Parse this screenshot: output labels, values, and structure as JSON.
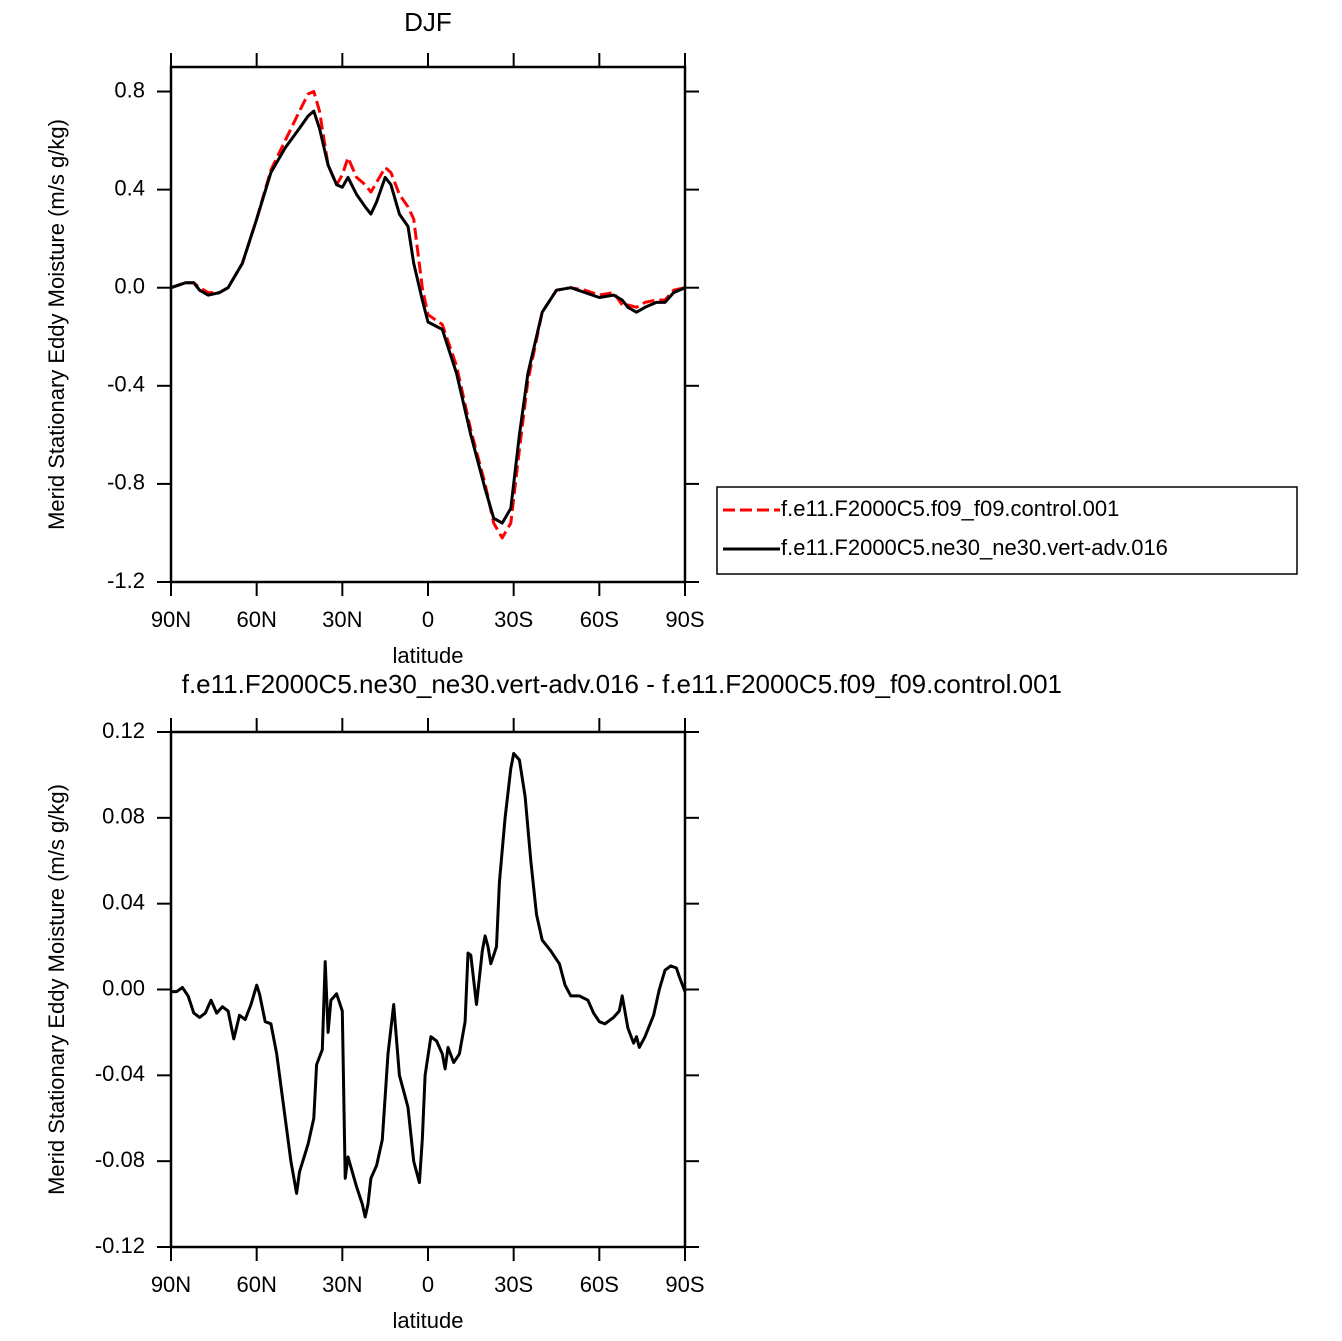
{
  "chart_data": [
    {
      "type": "line",
      "title": "DJF",
      "x_label": "latitude",
      "y_label": "Merid Stationary Eddy Moisture (m/s g/kg)",
      "x": [
        90,
        85,
        82,
        80,
        77,
        73,
        70,
        65,
        60,
        55,
        50,
        45,
        42,
        40,
        38,
        35,
        32,
        30,
        28,
        25,
        22,
        20,
        18,
        15,
        13,
        10,
        7,
        5,
        2,
        0,
        -5,
        -10,
        -15,
        -20,
        -23,
        -26,
        -29,
        -32,
        -35,
        -40,
        -45,
        -50,
        -55,
        -60,
        -65,
        -68,
        -70,
        -73,
        -76,
        -80,
        -83,
        -86,
        -90
      ],
      "series": [
        {
          "name": "f.e11.F2000C5.f09_f09.control.001",
          "color": "#ff0000",
          "style": "dashed",
          "values": [
            0.0,
            0.02,
            0.02,
            0.0,
            -0.02,
            -0.02,
            0.0,
            0.1,
            0.28,
            0.48,
            0.6,
            0.72,
            0.79,
            0.8,
            0.72,
            0.5,
            0.42,
            0.46,
            0.53,
            0.45,
            0.42,
            0.39,
            0.43,
            0.49,
            0.47,
            0.38,
            0.33,
            0.28,
            0.0,
            -0.11,
            -0.15,
            -0.32,
            -0.58,
            -0.8,
            -0.96,
            -1.02,
            -0.96,
            -0.66,
            -0.38,
            -0.1,
            -0.01,
            0.0,
            -0.01,
            -0.03,
            -0.02,
            -0.07,
            -0.07,
            -0.08,
            -0.06,
            -0.05,
            -0.05,
            -0.01,
            0.0
          ]
        },
        {
          "name": "f.e11.F2000C5.ne30_ne30.vert-adv.016",
          "color": "#000000",
          "style": "solid",
          "values": [
            0.0,
            0.02,
            0.02,
            -0.01,
            -0.03,
            -0.02,
            0.0,
            0.1,
            0.28,
            0.47,
            0.57,
            0.65,
            0.7,
            0.72,
            0.65,
            0.5,
            0.42,
            0.41,
            0.45,
            0.38,
            0.33,
            0.3,
            0.35,
            0.45,
            0.42,
            0.3,
            0.25,
            0.1,
            -0.05,
            -0.14,
            -0.17,
            -0.35,
            -0.6,
            -0.82,
            -0.94,
            -0.96,
            -0.9,
            -0.6,
            -0.35,
            -0.1,
            -0.01,
            0.0,
            -0.02,
            -0.04,
            -0.03,
            -0.05,
            -0.08,
            -0.1,
            -0.08,
            -0.06,
            -0.06,
            -0.02,
            0.0
          ]
        }
      ],
      "xlim": [
        90,
        -90
      ],
      "xticks": [
        {
          "value": 90,
          "label": "90N"
        },
        {
          "value": 60,
          "label": "60N"
        },
        {
          "value": 30,
          "label": "30N"
        },
        0,
        {
          "value": -30,
          "label": "30S"
        },
        {
          "value": -60,
          "label": "60S"
        },
        {
          "value": -90,
          "label": "90S"
        }
      ],
      "ylim": [
        -1.2,
        0.9
      ],
      "yticks": [
        -1.2,
        -0.8,
        -0.4,
        {
          "value": 0,
          "label": "0.0"
        },
        0.4,
        0.8
      ],
      "legend": "right"
    },
    {
      "type": "line",
      "title": "f.e11.F2000C5.ne30_ne30.vert-adv.016 - f.e11.F2000C5.f09_f09.control.001",
      "x_label": "latitude",
      "y_label": "Merid Stationary Eddy Moisture (m/s g/kg)",
      "x": [
        90,
        88,
        86,
        84,
        82,
        80,
        78,
        76,
        74,
        72,
        70,
        68,
        66,
        64,
        62,
        60,
        59,
        57,
        55,
        53,
        50,
        48,
        46,
        45,
        42,
        40,
        39,
        37,
        36,
        35,
        34,
        32,
        30,
        29,
        28,
        25,
        23,
        22,
        21,
        20,
        18,
        16,
        14,
        12,
        10,
        8,
        7,
        5,
        3,
        2,
        1,
        -1,
        -3,
        -5,
        -6,
        -7,
        -9,
        -11,
        -13,
        -14,
        -15,
        -17,
        -19,
        -20,
        -21,
        -22,
        -23,
        -24,
        -25,
        -27,
        -29,
        -30,
        -32,
        -34,
        -36,
        -38,
        -40,
        -43,
        -46,
        -48,
        -50,
        -53,
        -56,
        -58,
        -60,
        -62,
        -65,
        -67,
        -68,
        -70,
        -72,
        -73,
        -74,
        -76,
        -79,
        -81,
        -83,
        -85,
        -87,
        -88,
        -90
      ],
      "series": [
        {
          "color": "#000000",
          "style": "solid",
          "values": [
            -0.001,
            -0.001,
            0.001,
            -0.003,
            -0.011,
            -0.013,
            -0.011,
            -0.005,
            -0.011,
            -0.008,
            -0.01,
            -0.023,
            -0.012,
            -0.014,
            -0.007,
            0.002,
            -0.002,
            -0.015,
            -0.016,
            -0.03,
            -0.06,
            -0.08,
            -0.095,
            -0.085,
            -0.072,
            -0.06,
            -0.035,
            -0.028,
            0.013,
            -0.02,
            -0.005,
            -0.002,
            -0.01,
            -0.088,
            -0.078,
            -0.092,
            -0.1,
            -0.106,
            -0.1,
            -0.088,
            -0.082,
            -0.07,
            -0.03,
            -0.007,
            -0.04,
            -0.05,
            -0.055,
            -0.08,
            -0.09,
            -0.07,
            -0.04,
            -0.022,
            -0.024,
            -0.03,
            -0.037,
            -0.027,
            -0.034,
            -0.03,
            -0.015,
            0.017,
            0.016,
            -0.007,
            0.018,
            0.025,
            0.02,
            0.012,
            0.016,
            0.02,
            0.05,
            0.08,
            0.103,
            0.11,
            0.107,
            0.09,
            0.06,
            0.035,
            0.023,
            0.018,
            0.012,
            0.002,
            -0.003,
            -0.003,
            -0.005,
            -0.011,
            -0.015,
            -0.016,
            -0.013,
            -0.01,
            -0.003,
            -0.018,
            -0.025,
            -0.022,
            -0.027,
            -0.022,
            -0.012,
            0.0,
            0.009,
            0.011,
            0.01,
            0.006,
            -0.001
          ]
        }
      ],
      "xlim": [
        90,
        -90
      ],
      "xticks": [
        {
          "value": 90,
          "label": "90N"
        },
        {
          "value": 60,
          "label": "60N"
        },
        {
          "value": 30,
          "label": "30N"
        },
        0,
        {
          "value": -30,
          "label": "30S"
        },
        {
          "value": -60,
          "label": "60S"
        },
        {
          "value": -90,
          "label": "90S"
        }
      ],
      "ylim": [
        -0.12,
        0.12
      ],
      "yticks": [
        -0.12,
        -0.08,
        -0.04,
        {
          "value": 0,
          "label": "0.00"
        },
        0.04,
        0.08,
        0.12
      ]
    }
  ]
}
